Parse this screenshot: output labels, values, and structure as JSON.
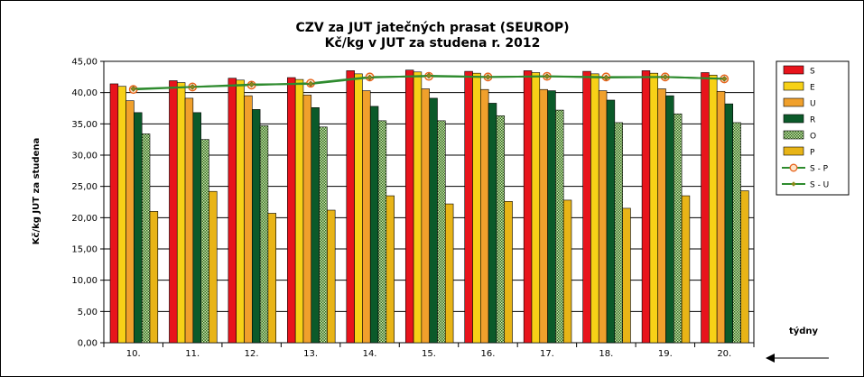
{
  "chart_data": {
    "type": "bar",
    "title": "CZV za JUT jatečných prasat (SEUROP)",
    "subtitle": "Kč/kg v JUT za studena r. 2012",
    "ylabel": "Kč/kg  JUT za studena",
    "xlabel": "týdny",
    "ylim": [
      0,
      45
    ],
    "yticks": [
      "0,00",
      "5,00",
      "10,00",
      "15,00",
      "20,00",
      "25,00",
      "30,00",
      "35,00",
      "40,00",
      "45,00"
    ],
    "categories": [
      "10.",
      "11.",
      "12.",
      "13.",
      "14.",
      "15.",
      "16.",
      "17.",
      "18.",
      "19.",
      "20."
    ],
    "series": [
      {
        "name": "S",
        "kind": "bar",
        "color": "#e8141c",
        "values": [
          41.4,
          41.9,
          42.3,
          42.4,
          43.5,
          43.6,
          43.4,
          43.5,
          43.4,
          43.5,
          43.2
        ]
      },
      {
        "name": "E",
        "kind": "bar",
        "color": "#f7d117",
        "values": [
          41.0,
          41.6,
          42.0,
          42.1,
          43.0,
          43.3,
          43.1,
          43.2,
          43.0,
          43.1,
          42.8
        ]
      },
      {
        "name": "U",
        "kind": "bar",
        "color": "#f0a02c",
        "values": [
          38.7,
          39.1,
          39.5,
          39.6,
          40.3,
          40.6,
          40.5,
          40.5,
          40.3,
          40.6,
          40.2
        ]
      },
      {
        "name": "R",
        "kind": "bar",
        "color": "#0b5a2a",
        "values": [
          36.8,
          36.8,
          37.3,
          37.6,
          37.8,
          39.1,
          38.3,
          40.3,
          38.8,
          39.5,
          38.2
        ]
      },
      {
        "name": "O",
        "kind": "bar",
        "color": "#7fa84a",
        "pattern": true,
        "values": [
          33.4,
          32.5,
          34.7,
          34.5,
          35.5,
          35.5,
          36.3,
          37.2,
          35.2,
          36.6,
          35.2
        ]
      },
      {
        "name": "P",
        "kind": "bar",
        "color": "#e8b417",
        "values": [
          21.0,
          24.2,
          20.7,
          21.2,
          23.5,
          22.2,
          22.6,
          22.8,
          21.5,
          23.5,
          24.3
        ]
      },
      {
        "name": "S - P",
        "kind": "line",
        "color": "#2e8b2e",
        "marker": "circle",
        "markerColor": "#e8641c",
        "values": [
          40.5,
          40.9,
          41.2,
          41.5,
          42.5,
          42.6,
          42.5,
          42.6,
          42.5,
          42.5,
          42.2
        ]
      },
      {
        "name": "S - U",
        "kind": "line",
        "color": "#2e8b2e",
        "marker": "diamond",
        "markerColor": "#8a8a1a",
        "values": [
          40.6,
          40.9,
          41.3,
          41.4,
          42.4,
          42.7,
          42.5,
          42.6,
          42.4,
          42.5,
          42.2
        ]
      }
    ],
    "legend": "right",
    "grid": true
  }
}
